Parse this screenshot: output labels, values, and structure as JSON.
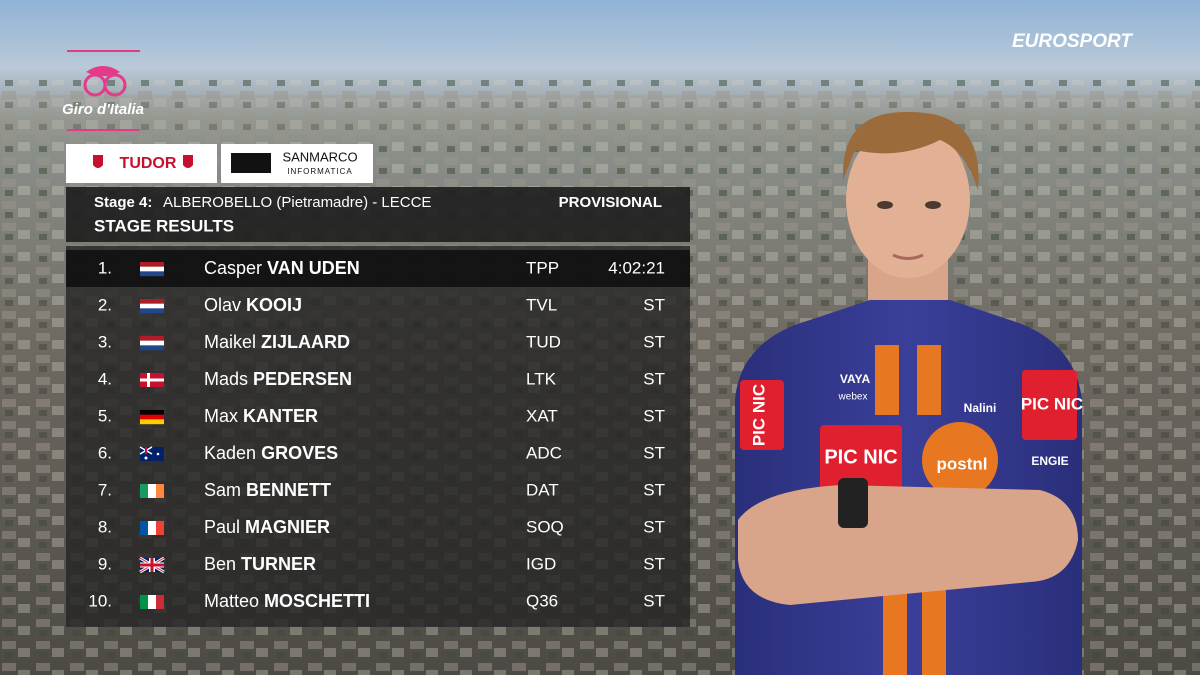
{
  "broadcaster": "EUROSPORT",
  "event": {
    "name": "Giro d'Italia"
  },
  "sponsors": [
    "TUDOR",
    "SANMARCO",
    "INFORMATICA"
  ],
  "header": {
    "stage": "Stage 4:",
    "route": "ALBEROBELLO (Pietramadre) - LECCE",
    "status": "PROVISIONAL",
    "title": "STAGE RESULTS"
  },
  "results": [
    [
      "1.",
      "Casper",
      "VAN UDEN",
      "TPP",
      "4:02:21"
    ],
    [
      "2.",
      "Olav",
      "KOOIJ",
      "TVL",
      "ST"
    ],
    [
      "3.",
      "Maikel",
      "ZIJLAARD",
      "TUD",
      "ST"
    ],
    [
      "4.",
      "Mads",
      "PEDERSEN",
      "LTK",
      "ST"
    ],
    [
      "5.",
      "Max",
      "KANTER",
      "XAT",
      "ST"
    ],
    [
      "6.",
      "Kaden",
      "GROVES",
      "ADC",
      "ST"
    ],
    [
      "7.",
      "Sam",
      "BENNETT",
      "DAT",
      "ST"
    ],
    [
      "8.",
      "Paul",
      "MAGNIER",
      "SOQ",
      "ST"
    ],
    [
      "9.",
      "Ben",
      "TURNER",
      "IGD",
      "ST"
    ],
    [
      "10.",
      "Matteo",
      "MOSCHETTI",
      "Q36",
      "ST"
    ]
  ],
  "jersey": {
    "chest_left": "PIC NIC",
    "chest_center": "postnl",
    "sponsor_top": "VAYA",
    "sponsor_mid": "webex",
    "sponsor_right": "Nalini",
    "sleeve": "ENGIE"
  }
}
